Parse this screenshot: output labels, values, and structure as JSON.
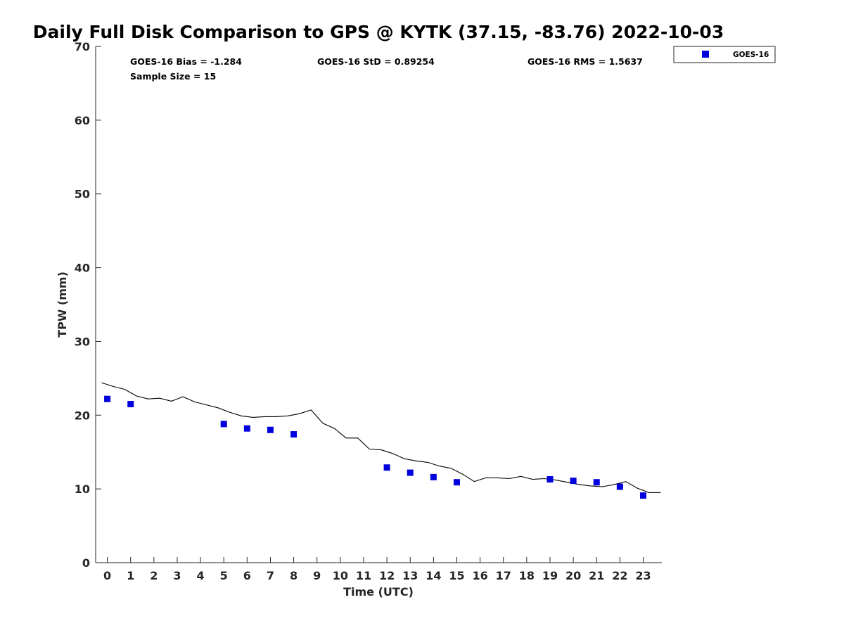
{
  "chart_data": {
    "type": "scatter",
    "title": "Daily Full Disk Comparison to GPS @ KYTK (37.15, -83.76) 2022-10-03",
    "xlabel": "Time (UTC)",
    "ylabel": "TPW (mm)",
    "xlim": [
      -0.5,
      23.8
    ],
    "ylim": [
      0,
      70
    ],
    "x_ticks": [
      0,
      1,
      2,
      3,
      4,
      5,
      6,
      7,
      8,
      9,
      10,
      11,
      12,
      13,
      14,
      15,
      16,
      17,
      18,
      19,
      20,
      21,
      22,
      23
    ],
    "y_ticks": [
      0,
      10,
      20,
      30,
      40,
      50,
      60,
      70
    ],
    "grid": false,
    "legend_position": "outside-top-right",
    "stats": {
      "bias": "GOES-16 Bias = -1.284",
      "sample_size": "Sample Size = 15",
      "std": "GOES-16 StD = 0.89254",
      "rms": "GOES-16 RMS = 1.5637"
    },
    "series": [
      {
        "name": "GOES-16",
        "kind": "markers",
        "marker": "square",
        "color": "#0000dd",
        "x": [
          0,
          1,
          5,
          6,
          7,
          8,
          12,
          13,
          14,
          15,
          19,
          20,
          21,
          22,
          23
        ],
        "y": [
          22.2,
          21.5,
          18.8,
          18.2,
          18.0,
          17.4,
          12.9,
          12.2,
          11.6,
          10.9,
          11.3,
          11.1,
          10.9,
          10.3,
          9.1
        ]
      },
      {
        "kind": "line",
        "color": "#000000",
        "x": [
          -0.25,
          0.25,
          0.75,
          1.25,
          1.75,
          2.25,
          2.75,
          3.25,
          3.75,
          4.25,
          4.75,
          5.25,
          5.75,
          6.25,
          6.75,
          7.25,
          7.75,
          8.25,
          8.75,
          9.25,
          9.75,
          10.25,
          10.75,
          11.25,
          11.75,
          12.25,
          12.75,
          13.25,
          13.75,
          14.25,
          14.75,
          15.25,
          15.75,
          16.25,
          16.75,
          17.25,
          17.75,
          18.25,
          18.75,
          19.25,
          19.75,
          20.25,
          20.75,
          21.25,
          21.75,
          22.25,
          22.75,
          23.25,
          23.75
        ],
        "y": [
          24.4,
          23.9,
          23.5,
          22.6,
          22.2,
          22.3,
          21.9,
          22.5,
          21.8,
          21.4,
          21.0,
          20.4,
          19.9,
          19.7,
          19.8,
          19.8,
          19.9,
          20.2,
          20.7,
          18.9,
          18.2,
          16.9,
          16.9,
          15.4,
          15.3,
          14.8,
          14.1,
          13.8,
          13.6,
          13.1,
          12.8,
          12.0,
          11.0,
          11.5,
          11.5,
          11.4,
          11.7,
          11.3,
          11.4,
          11.2,
          10.9,
          10.6,
          10.4,
          10.3,
          10.6,
          11.0,
          10.1,
          9.5,
          9.5
        ]
      }
    ]
  }
}
